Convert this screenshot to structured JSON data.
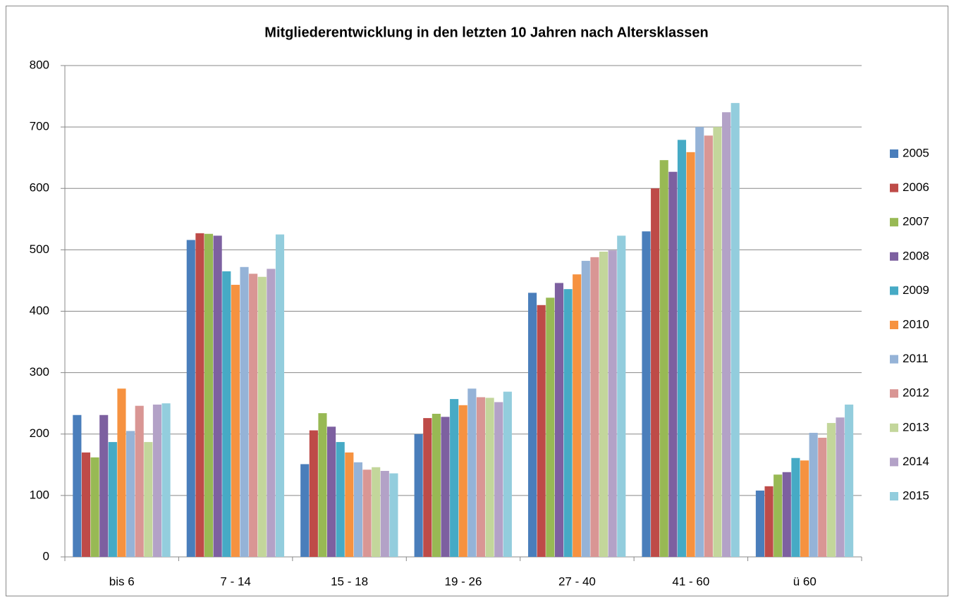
{
  "chart_data": {
    "type": "bar",
    "title": "Mitgliederentwicklung in den letzten 10 Jahren nach Altersklassen",
    "categories": [
      "bis 6",
      "7 - 14",
      "15 - 18",
      "19 - 26",
      "27 - 40",
      "41 - 60",
      "ü 60"
    ],
    "series": [
      {
        "name": "2005",
        "color": "#4a7ebb",
        "values": [
          231,
          516,
          151,
          200,
          430,
          530,
          108
        ]
      },
      {
        "name": "2006",
        "color": "#be4b48",
        "values": [
          170,
          527,
          206,
          226,
          410,
          600,
          115
        ]
      },
      {
        "name": "2007",
        "color": "#98b954",
        "values": [
          162,
          526,
          234,
          233,
          422,
          646,
          134
        ]
      },
      {
        "name": "2008",
        "color": "#7d60a0",
        "values": [
          231,
          523,
          212,
          228,
          446,
          627,
          138
        ]
      },
      {
        "name": "2009",
        "color": "#46aac5",
        "values": [
          187,
          465,
          187,
          257,
          436,
          679,
          161
        ]
      },
      {
        "name": "2010",
        "color": "#f69240",
        "values": [
          274,
          443,
          170,
          247,
          460,
          659,
          157
        ]
      },
      {
        "name": "2011",
        "color": "#95b3d7",
        "values": [
          205,
          472,
          154,
          274,
          482,
          700,
          202
        ]
      },
      {
        "name": "2012",
        "color": "#d99694",
        "values": [
          246,
          461,
          142,
          260,
          488,
          686,
          194
        ]
      },
      {
        "name": "2013",
        "color": "#c3d69b",
        "values": [
          187,
          456,
          146,
          259,
          497,
          700,
          218
        ]
      },
      {
        "name": "2014",
        "color": "#b3a2c7",
        "values": [
          248,
          469,
          140,
          252,
          499,
          724,
          227
        ]
      },
      {
        "name": "2015",
        "color": "#93cddd",
        "values": [
          250,
          525,
          136,
          269,
          523,
          739,
          248
        ]
      }
    ],
    "ylim": [
      0,
      800
    ],
    "yticks": [
      0,
      100,
      200,
      300,
      400,
      500,
      600,
      700,
      800
    ],
    "grid": true,
    "legend": "right"
  }
}
